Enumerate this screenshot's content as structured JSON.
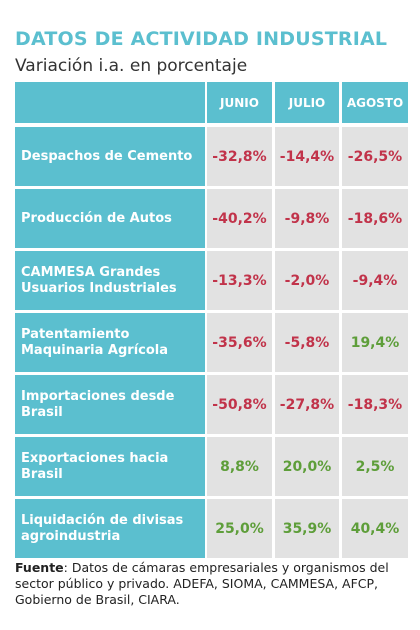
{
  "title": "DATOS DE ACTIVIDAD INDUSTRIAL",
  "subtitle": "Variación i.a. en porcentaje",
  "colors": {
    "accent": "#5bbfcf",
    "negative": "#c1334a",
    "positive": "#5e9e3a",
    "cell_bg": "#e2e2e2"
  },
  "chart_data": {
    "type": "table",
    "columns": [
      "JUNIO",
      "JULIO",
      "AGOSTO"
    ],
    "rows": [
      {
        "label": "Despachos de Cemento",
        "values": [
          "-32,8%",
          "-14,4%",
          "-26,5%"
        ]
      },
      {
        "label": "Producción de Autos",
        "values": [
          "-40,2%",
          "-9,8%",
          "-18,6%"
        ]
      },
      {
        "label": "CAMMESA Grandes Usuarios Industriales",
        "values": [
          "-13,3%",
          "-2,0%",
          "-9,4%"
        ]
      },
      {
        "label": "Patentamiento Maquinaria Agrícola",
        "values": [
          "-35,6%",
          "-5,8%",
          "19,4%"
        ]
      },
      {
        "label": "Importaciones desde Brasil",
        "values": [
          "-50,8%",
          "-27,8%",
          "-18,3%"
        ]
      },
      {
        "label": "Exportaciones hacia Brasil",
        "values": [
          "8,8%",
          "20,0%",
          "2,5%"
        ]
      },
      {
        "label": "Liquidación de divisas agroindustria",
        "values": [
          "25,0%",
          "35,9%",
          "40,4%"
        ]
      }
    ]
  },
  "source": {
    "label": "Fuente",
    "text": ": Datos de cámaras empresariales y organismos del sector público y privado. ADEFA, SIOMA, CAMMESA, AFCP, Gobierno de Brasil, CIARA."
  }
}
